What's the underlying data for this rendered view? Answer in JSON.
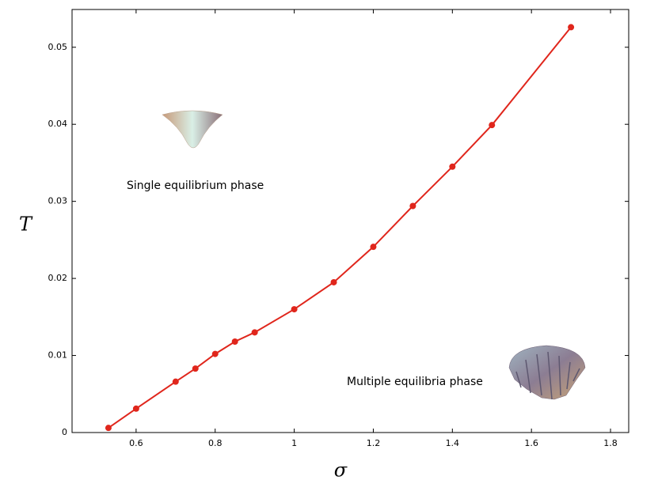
{
  "chart_data": {
    "type": "line",
    "x_label": "σ",
    "y_label": "T",
    "x": [
      0.53,
      0.6,
      0.7,
      0.75,
      0.8,
      0.85,
      0.9,
      1.0,
      1.1,
      1.2,
      1.3,
      1.4,
      1.5,
      1.7
    ],
    "series": [
      {
        "color": "#e0261c",
        "values": [
          0.0006,
          0.0031,
          0.0066,
          0.0083,
          0.0102,
          0.0118,
          0.013,
          0.016,
          0.0195,
          0.0241,
          0.0294,
          0.0345,
          0.0399,
          0.0526
        ]
      }
    ],
    "xlim": [
      0.438,
      1.846
    ],
    "xticks": [
      0.6,
      0.8,
      1,
      1.2,
      1.4,
      1.6,
      1.8
    ],
    "ylim": [
      0,
      0.0549
    ],
    "yticks": [
      0,
      0.01,
      0.02,
      0.03,
      0.04,
      0.05
    ],
    "annotations": [
      "Single equilibrium phase",
      "Multiple equilibria phase"
    ]
  }
}
